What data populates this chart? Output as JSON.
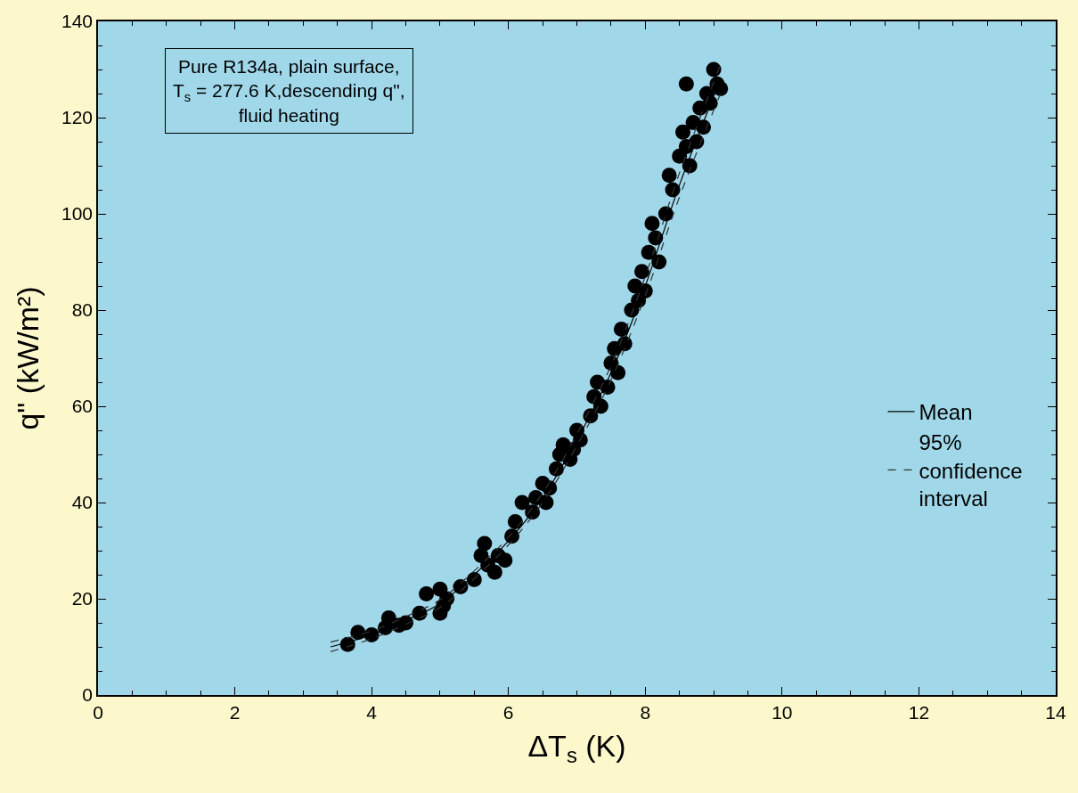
{
  "chart_data": {
    "type": "scatter",
    "xlabel": "ΔT$_{s}$ (K)",
    "ylabel": "q\" (kW/m²)",
    "annotations": [
      "Pure R134a, plain surface,\nT$_{s}$ = 277.6 K,descending q\",\nfluid heating"
    ],
    "xlim": [
      0,
      14
    ],
    "xticks": [
      0,
      2,
      4,
      6,
      8,
      10,
      12,
      14
    ],
    "ylim": [
      0,
      140
    ],
    "yticks": [
      0,
      20,
      40,
      60,
      80,
      100,
      120,
      140
    ],
    "grid": false,
    "legend": "right",
    "series": [
      {
        "marker": "circle",
        "color": "#000000",
        "x": [
          3.65,
          3.8,
          4.0,
          4.2,
          4.25,
          4.4,
          4.5,
          4.7,
          4.8,
          5.0,
          5.0,
          5.05,
          5.1,
          5.3,
          5.5,
          5.6,
          5.65,
          5.7,
          5.8,
          5.85,
          5.95,
          6.05,
          6.1,
          6.2,
          6.35,
          6.4,
          6.5,
          6.55,
          6.6,
          6.7,
          6.75,
          6.8,
          6.9,
          6.95,
          7.0,
          7.05,
          7.2,
          7.25,
          7.3,
          7.35,
          7.45,
          7.5,
          7.55,
          7.6,
          7.65,
          7.7,
          7.8,
          7.85,
          7.9,
          7.95,
          8.0,
          8.05,
          8.1,
          8.15,
          8.2,
          8.3,
          8.35,
          8.4,
          8.5,
          8.55,
          8.6,
          8.65,
          8.7,
          8.75,
          8.8,
          8.85,
          8.9,
          8.95,
          9.0,
          9.05,
          9.1,
          8.6
        ],
        "values": [
          10.5,
          13,
          12.5,
          14,
          16,
          14.5,
          15,
          17,
          21,
          17,
          22,
          18.5,
          20,
          22.5,
          24,
          29,
          31.5,
          27,
          25.5,
          29,
          28,
          33,
          36,
          40,
          38,
          41,
          44,
          40,
          43,
          47,
          50,
          52,
          49,
          51,
          55,
          53,
          58,
          62,
          65,
          60,
          64,
          69,
          72,
          67,
          76,
          73,
          80,
          85,
          82,
          88,
          84,
          92,
          98,
          95,
          90,
          100,
          108,
          105,
          112,
          117,
          114,
          110,
          119,
          115,
          122,
          118,
          125,
          123,
          130,
          127,
          126,
          127
        ]
      },
      {
        "type": "line",
        "name": "Mean",
        "marker": "none",
        "color": "#000000",
        "line_style": "solid",
        "x": [
          3.4,
          4,
          4.5,
          5,
          5.5,
          6,
          6.5,
          7,
          7.5,
          8,
          8.5,
          9.1
        ],
        "values": [
          10,
          12.5,
          15.5,
          19,
          25,
          32,
          41,
          53,
          67,
          85,
          106,
          128
        ]
      },
      {
        "type": "line",
        "name": "95% confidence interval",
        "marker": "none",
        "color": "#333333",
        "line_style": "dashed",
        "x": [
          3.4,
          4,
          4.5,
          5,
          5.5,
          6,
          6.5,
          7,
          7.5,
          8,
          8.5,
          9.1
        ],
        "values": [
          11,
          13.3,
          16.3,
          19.8,
          25.8,
          32.8,
          42,
          54.2,
          68.5,
          87,
          108.5,
          131
        ]
      },
      {
        "type": "line",
        "marker": "none",
        "color": "#333333",
        "line_style": "dashed",
        "x": [
          3.4,
          4,
          4.5,
          5,
          5.5,
          6,
          6.5,
          7,
          7.5,
          8,
          8.5,
          9.1
        ],
        "values": [
          9,
          11.7,
          14.7,
          18.2,
          24.2,
          31.2,
          40,
          51.8,
          65.5,
          83,
          103.5,
          125
        ]
      }
    ]
  }
}
